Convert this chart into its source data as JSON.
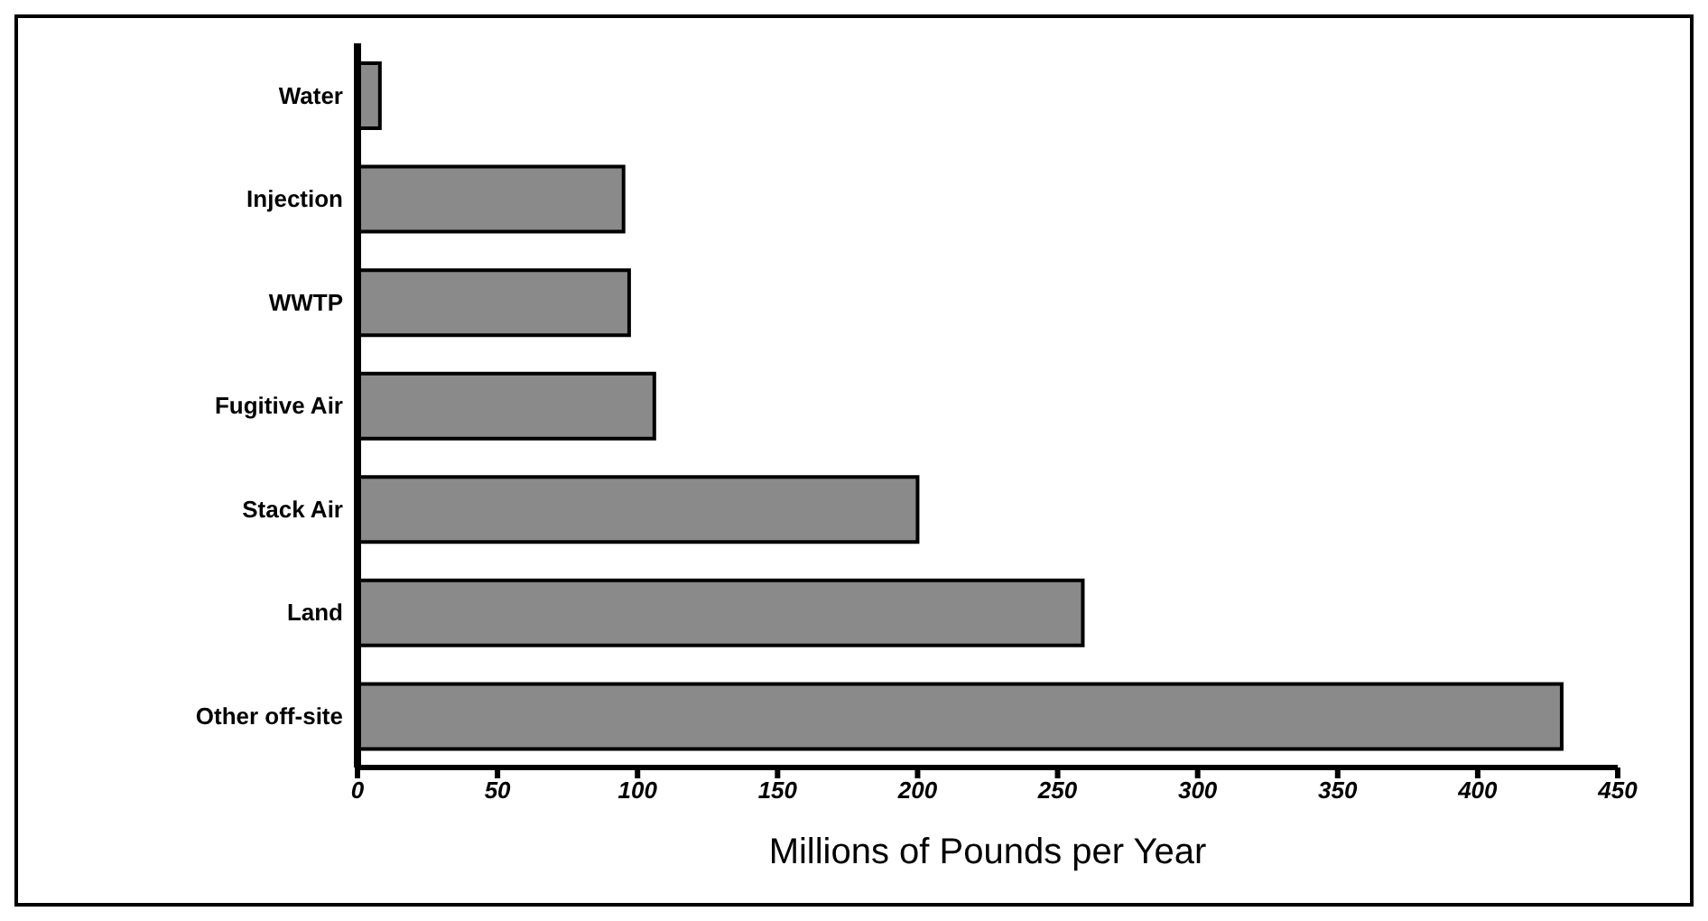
{
  "chart_data": {
    "type": "bar",
    "orientation": "horizontal",
    "xlabel": "Millions of Pounds per Year",
    "categories": [
      "Water",
      "Injection",
      "WWTP",
      "Fugitive Air",
      "Stack Air",
      "Land",
      "Other off-site"
    ],
    "values": [
      8,
      95,
      97,
      106,
      200,
      259,
      430
    ],
    "color": "#8a8a8a",
    "xlim": [
      0,
      450
    ],
    "xticks": [
      0,
      50,
      100,
      150,
      200,
      250,
      300,
      350,
      400,
      450
    ]
  }
}
